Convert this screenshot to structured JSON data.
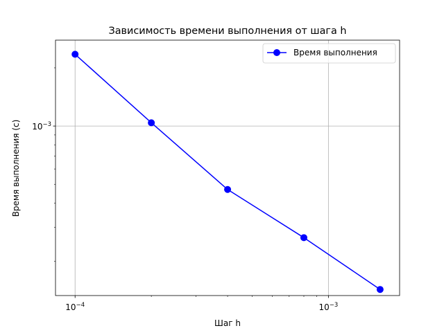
{
  "chart_data": {
    "type": "line",
    "scale": {
      "x": "log",
      "y": "log"
    },
    "title": "Зависимость времени выполнения от шага h",
    "xlabel": "Шаг h",
    "ylabel": "Время выполнения (с)",
    "xlim": [
      8.37e-05,
      0.00191
    ],
    "ylim": [
      0.000133,
      0.00278
    ],
    "grid": true,
    "legend_position": "top-right",
    "x_major_ticks": [
      {
        "value": 0.0001,
        "base": "10",
        "exp": "−4"
      },
      {
        "value": 0.001,
        "base": "10",
        "exp": "−3"
      }
    ],
    "y_major_ticks": [
      {
        "value": 0.001,
        "base": "10",
        "exp": "−3"
      }
    ],
    "x_minor_ticks": [
      0.0002,
      0.0003,
      0.0004,
      0.0005,
      0.0006,
      0.0007,
      0.0008,
      0.0009
    ],
    "y_minor_ticks": [
      0.0002,
      0.0003,
      0.0004,
      0.0005,
      0.0006,
      0.0007,
      0.0008,
      0.0009,
      0.002
    ],
    "series": [
      {
        "name": "Время выполнения",
        "color": "#0000ff",
        "marker": "circle",
        "x": [
          0.0001,
          0.0002,
          0.0004,
          0.0008,
          0.0016
        ],
        "y": [
          0.00235,
          0.00104,
          0.00047,
          0.000265,
          0.000143
        ]
      }
    ],
    "colors": {
      "axes": "#000000",
      "grid": "#b0b0b0",
      "legend_border": "#cccccc",
      "background": "#ffffff"
    }
  }
}
